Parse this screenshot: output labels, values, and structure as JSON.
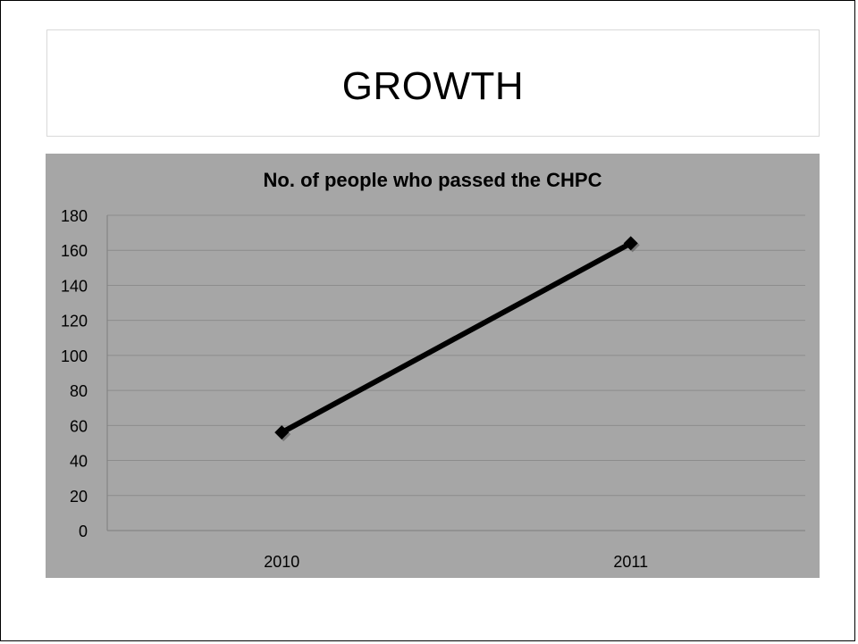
{
  "slide": {
    "title": "GROWTH"
  },
  "chart_data": {
    "type": "line",
    "title": "No. of people who passed the CHPC",
    "xlabel": "",
    "ylabel": "",
    "categories": [
      "2010",
      "2011"
    ],
    "series": [
      {
        "values": [
          56,
          164
        ]
      }
    ],
    "ylim": [
      0,
      180
    ],
    "yticks": [
      0,
      20,
      40,
      60,
      80,
      100,
      120,
      140,
      160,
      180
    ],
    "grid": true,
    "legend": "none",
    "colors": {
      "plot_background": "#a6a6a6",
      "line": "#000000",
      "gridline": "#8c8c8c",
      "text": "#000000"
    },
    "marker": "diamond-icon"
  }
}
